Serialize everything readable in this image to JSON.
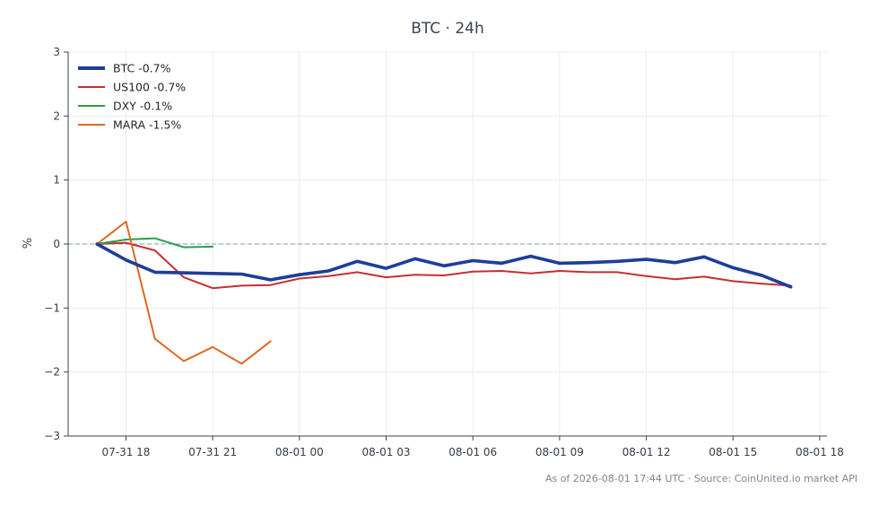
{
  "chart_data": {
    "type": "line",
    "title": "BTC · 24h",
    "ylabel": "%",
    "xlabel": "",
    "ylim": [
      -3,
      3
    ],
    "yticks": [
      3,
      2,
      1,
      0,
      -1,
      -2,
      -3
    ],
    "ytick_labels": [
      "3",
      "2",
      "1",
      "0",
      "−1",
      "−2",
      "−3"
    ],
    "xlim": [
      "07-31 16:00",
      "08-01 18:15"
    ],
    "xticks": [
      "07-31 18:00",
      "07-31 21:00",
      "08-01 00:00",
      "08-01 03:00",
      "08-01 06:00",
      "08-01 09:00",
      "08-01 12:00",
      "08-01 15:00",
      "08-01 18:00"
    ],
    "xtick_labels": [
      "07-31 18",
      "07-31 21",
      "08-01 00",
      "08-01 03",
      "08-01 06",
      "08-01 09",
      "08-01 12",
      "08-01 15",
      "08-01 18"
    ],
    "grid": true,
    "zero_line": true,
    "legend_position": "top-left",
    "series": [
      {
        "name": "BTC -0.7%",
        "color": "#1f3d99",
        "width": "thick",
        "x": [
          "07-31 17:00",
          "07-31 18:00",
          "07-31 19:00",
          "07-31 20:00",
          "07-31 21:00",
          "07-31 22:00",
          "07-31 23:00",
          "08-01 00:00",
          "08-01 01:00",
          "08-01 02:00",
          "08-01 03:00",
          "08-01 04:00",
          "08-01 05:00",
          "08-01 06:00",
          "08-01 07:00",
          "08-01 08:00",
          "08-01 09:00",
          "08-01 10:00",
          "08-01 11:00",
          "08-01 12:00",
          "08-01 13:00",
          "08-01 14:00",
          "08-01 15:00",
          "08-01 16:00",
          "08-01 17:00"
        ],
        "y": [
          0.0,
          -0.25,
          -0.44,
          -0.45,
          -0.46,
          -0.47,
          -0.56,
          -0.48,
          -0.42,
          -0.27,
          -0.38,
          -0.23,
          -0.34,
          -0.26,
          -0.3,
          -0.19,
          -0.3,
          -0.29,
          -0.27,
          -0.24,
          -0.29,
          -0.2,
          -0.37,
          -0.49,
          -0.67
        ]
      },
      {
        "name": "US100 -0.7%",
        "color": "#c62f33",
        "width": "normal",
        "x": [
          "07-31 17:00",
          "07-31 18:00",
          "07-31 19:00",
          "07-31 20:00",
          "07-31 21:00",
          "07-31 22:00",
          "07-31 23:00",
          "08-01 00:00",
          "08-01 01:00",
          "08-01 02:00",
          "08-01 03:00",
          "08-01 04:00",
          "08-01 05:00",
          "08-01 06:00",
          "08-01 07:00",
          "08-01 08:00",
          "08-01 09:00",
          "08-01 10:00",
          "08-01 11:00",
          "08-01 12:00",
          "08-01 13:00",
          "08-01 14:00",
          "08-01 15:00",
          "08-01 16:00",
          "08-01 17:00"
        ],
        "y": [
          0.0,
          0.02,
          -0.1,
          -0.52,
          -0.69,
          -0.65,
          -0.64,
          -0.54,
          -0.5,
          -0.44,
          -0.52,
          -0.48,
          -0.49,
          -0.43,
          -0.42,
          -0.46,
          -0.42,
          -0.44,
          -0.44,
          -0.5,
          -0.55,
          -0.51,
          -0.58,
          -0.62,
          -0.65
        ]
      },
      {
        "name": "DXY -0.1%",
        "color": "#2a9e4a",
        "width": "normal",
        "x": [
          "07-31 17:00",
          "07-31 18:00",
          "07-31 19:00",
          "07-31 20:00",
          "07-31 21:00"
        ],
        "y": [
          0.0,
          0.07,
          0.09,
          -0.05,
          -0.04
        ]
      },
      {
        "name": "MARA -1.5%",
        "color": "#dd6a22",
        "width": "normal",
        "x": [
          "07-31 17:00",
          "07-31 18:00",
          "07-31 19:00",
          "07-31 20:00",
          "07-31 21:00",
          "07-31 22:00",
          "07-31 23:00"
        ],
        "y": [
          0.0,
          0.35,
          -1.48,
          -1.83,
          -1.61,
          -1.87,
          -1.52
        ]
      }
    ]
  },
  "footer": "As of 2026-08-01 17:44 UTC · Source: CoinUnited.io market API"
}
